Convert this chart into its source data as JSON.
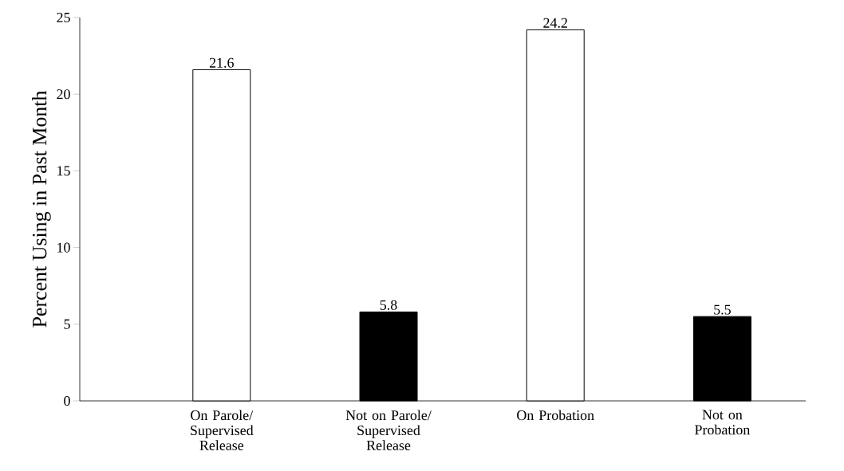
{
  "chart_data": {
    "type": "bar",
    "ylabel": "Percent Using in Past Month",
    "categories": [
      "On Parole/ Supervised Release",
      "Not on Parole/ Supervised Release",
      "On Probation",
      "Not on Probation"
    ],
    "values": [
      21.6,
      5.8,
      24.2,
      5.5
    ],
    "colors": [
      "#ffffff",
      "#000000",
      "#ffffff",
      "#000000"
    ],
    "ylim": [
      0,
      25
    ],
    "yticks": [
      0,
      5,
      10,
      15,
      20,
      25
    ],
    "data_labels": true
  }
}
